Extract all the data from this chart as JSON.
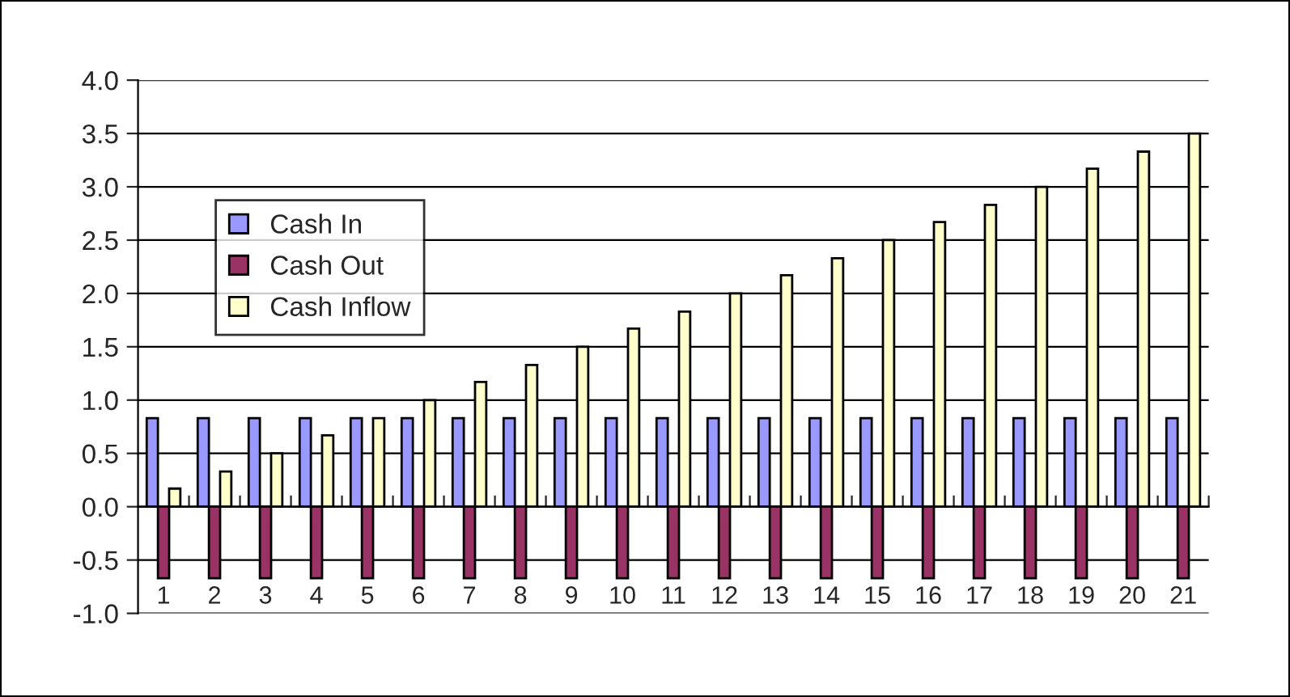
{
  "chart_data": {
    "type": "bar",
    "categories": [
      "1",
      "2",
      "3",
      "4",
      "5",
      "6",
      "7",
      "8",
      "9",
      "10",
      "11",
      "12",
      "13",
      "14",
      "15",
      "16",
      "17",
      "18",
      "19",
      "20",
      "21"
    ],
    "series": [
      {
        "name": "Cash In",
        "color": "#9999ff",
        "values": [
          0.83,
          0.83,
          0.83,
          0.83,
          0.83,
          0.83,
          0.83,
          0.83,
          0.83,
          0.83,
          0.83,
          0.83,
          0.83,
          0.83,
          0.83,
          0.83,
          0.83,
          0.83,
          0.83,
          0.83,
          0.83
        ]
      },
      {
        "name": "Cash Out",
        "color": "#993366",
        "values": [
          -0.67,
          -0.67,
          -0.67,
          -0.67,
          -0.67,
          -0.67,
          -0.67,
          -0.67,
          -0.67,
          -0.67,
          -0.67,
          -0.67,
          -0.67,
          -0.67,
          -0.67,
          -0.67,
          -0.67,
          -0.67,
          -0.67,
          -0.67,
          -0.67
        ]
      },
      {
        "name": "Cash Inflow",
        "color": "#ffffcc",
        "values": [
          0.17,
          0.33,
          0.5,
          0.67,
          0.83,
          1.0,
          1.17,
          1.33,
          1.5,
          1.67,
          1.83,
          2.0,
          2.17,
          2.33,
          2.5,
          2.67,
          2.83,
          3.0,
          3.17,
          3.33,
          3.5
        ]
      }
    ],
    "ylim": [
      -1.0,
      4.0
    ],
    "yticks": [
      {
        "value": -1.0,
        "label": "-1.0"
      },
      {
        "value": -0.5,
        "label": "-0.5"
      },
      {
        "value": 0,
        "label": "0.0"
      },
      {
        "value": 0.5,
        "label": "0.5"
      },
      {
        "value": 1.0,
        "label": "1.0"
      },
      {
        "value": 1.5,
        "label": "1.5"
      },
      {
        "value": 2.0,
        "label": "2.0"
      },
      {
        "value": 2.5,
        "label": "2.5"
      },
      {
        "value": 3.0,
        "label": "3.0"
      },
      {
        "value": 3.5,
        "label": "3.5"
      },
      {
        "value": 4.0,
        "label": "4.0"
      }
    ],
    "grid": "y",
    "legend": "top left"
  }
}
